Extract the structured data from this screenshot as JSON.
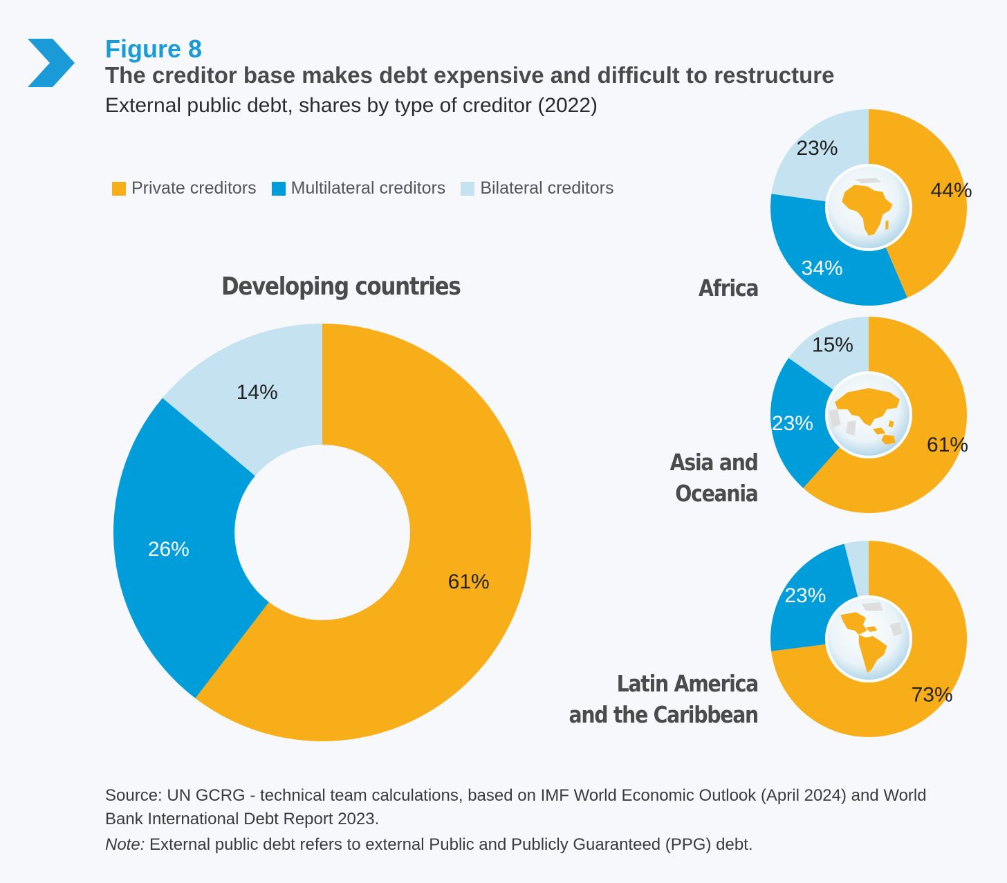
{
  "header": {
    "figure_label": "Figure 8",
    "title": "The creditor base makes debt expensive and difficult to restructure",
    "subtitle": "External public debt, shares by type of creditor (2022)"
  },
  "icons": {
    "header": "chevron-right-icon"
  },
  "colors": {
    "private": "#f8ae19",
    "multilateral": "#009ddb",
    "bilateral": "#c4e2f0"
  },
  "legend": [
    {
      "label": "Private creditors",
      "color": "#f8ae19"
    },
    {
      "label": "Multilateral creditors",
      "color": "#009ddb"
    },
    {
      "label": "Bilateral creditors",
      "color": "#c4e2f0"
    }
  ],
  "chart_data": [
    {
      "type": "pie",
      "title": "Developing countries",
      "categories": [
        "Private creditors",
        "Multilateral creditors",
        "Bilateral creditors"
      ],
      "values": [
        61,
        26,
        14
      ],
      "labels": [
        "61%",
        "26%",
        "14%"
      ],
      "unit": "%"
    },
    {
      "type": "pie",
      "title": "Africa",
      "categories": [
        "Private creditors",
        "Multilateral creditors",
        "Bilateral creditors"
      ],
      "values": [
        44,
        34,
        23
      ],
      "labels": [
        "44%",
        "34%",
        "23%"
      ],
      "unit": "%",
      "center_icon": "africa-globe-icon"
    },
    {
      "type": "pie",
      "title": "Asia and Oceania",
      "title_lines": [
        "Asia and",
        "Oceania"
      ],
      "categories": [
        "Private creditors",
        "Multilateral creditors",
        "Bilateral creditors"
      ],
      "values": [
        61,
        23,
        15
      ],
      "labels": [
        "61%",
        "23%",
        "15%"
      ],
      "unit": "%",
      "center_icon": "asia-oceania-globe-icon"
    },
    {
      "type": "pie",
      "title": "Latin America and the Caribbean",
      "title_lines": [
        "Latin America",
        "and the Caribbean"
      ],
      "categories": [
        "Private creditors",
        "Multilateral creditors",
        "Bilateral creditors"
      ],
      "values": [
        73,
        23,
        4
      ],
      "labels": [
        "73%",
        "23%",
        ""
      ],
      "unit": "%",
      "center_icon": "americas-globe-icon"
    }
  ],
  "footer": {
    "source": "Source: UN GCRG - technical team calculations, based on IMF World Economic Outlook (April 2024) and World Bank International Debt Report 2023.",
    "note_label": "Note:",
    "note_text": " External public debt refers to external Public and Publicly Guaranteed (PPG) debt."
  }
}
